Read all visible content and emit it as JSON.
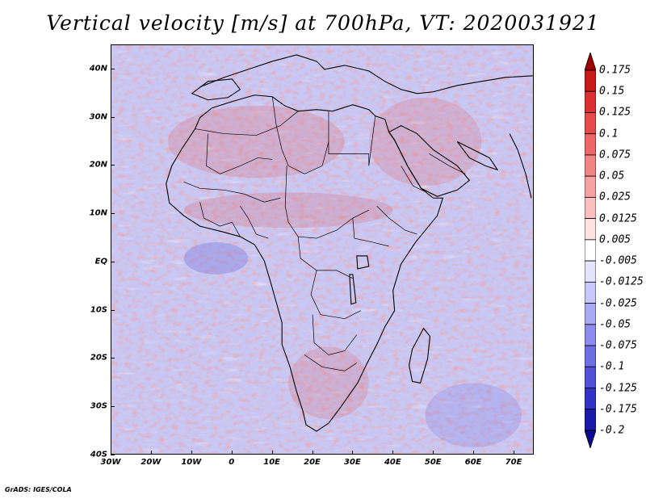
{
  "title": "Vertical velocity [m/s] at 700hPa, VT: 2020031921",
  "credit": "GrADS: IGES/COLA",
  "map": {
    "lat_labels": [
      "40N",
      "30N",
      "20N",
      "10N",
      "EQ",
      "10S",
      "20S",
      "30S",
      "40S"
    ],
    "lat_values": [
      40,
      30,
      20,
      10,
      0,
      -10,
      -20,
      -30,
      -40
    ],
    "lon_labels": [
      "30W",
      "20W",
      "10W",
      "0",
      "10E",
      "20E",
      "30E",
      "40E",
      "50E",
      "60E",
      "70E"
    ],
    "lon_values": [
      -30,
      -20,
      -10,
      0,
      10,
      20,
      30,
      40,
      50,
      60,
      70
    ],
    "lat_range": [
      -40,
      45
    ],
    "lon_range": [
      -30,
      75
    ]
  },
  "colorbar": {
    "labels": [
      "0.175",
      "0.15",
      "0.125",
      "0.1",
      "0.075",
      "0.05",
      "0.025",
      "0.0125",
      "0.005",
      "-0.005",
      "-0.0125",
      "-0.025",
      "-0.05",
      "-0.075",
      "-0.1",
      "-0.125",
      "-0.175",
      "-0.2"
    ],
    "colors": [
      "#a00000",
      "#c81818",
      "#dc3030",
      "#e64b4b",
      "#ee6666",
      "#f28484",
      "#f6a2a2",
      "#fac0c0",
      "#fde0e0",
      "#ffffff",
      "#e4e4ff",
      "#c8c8fa",
      "#aaaaf4",
      "#8c8cee",
      "#6e6ee4",
      "#5050d8",
      "#3232c8",
      "#1a1aaa",
      "#0a0a8c"
    ]
  }
}
